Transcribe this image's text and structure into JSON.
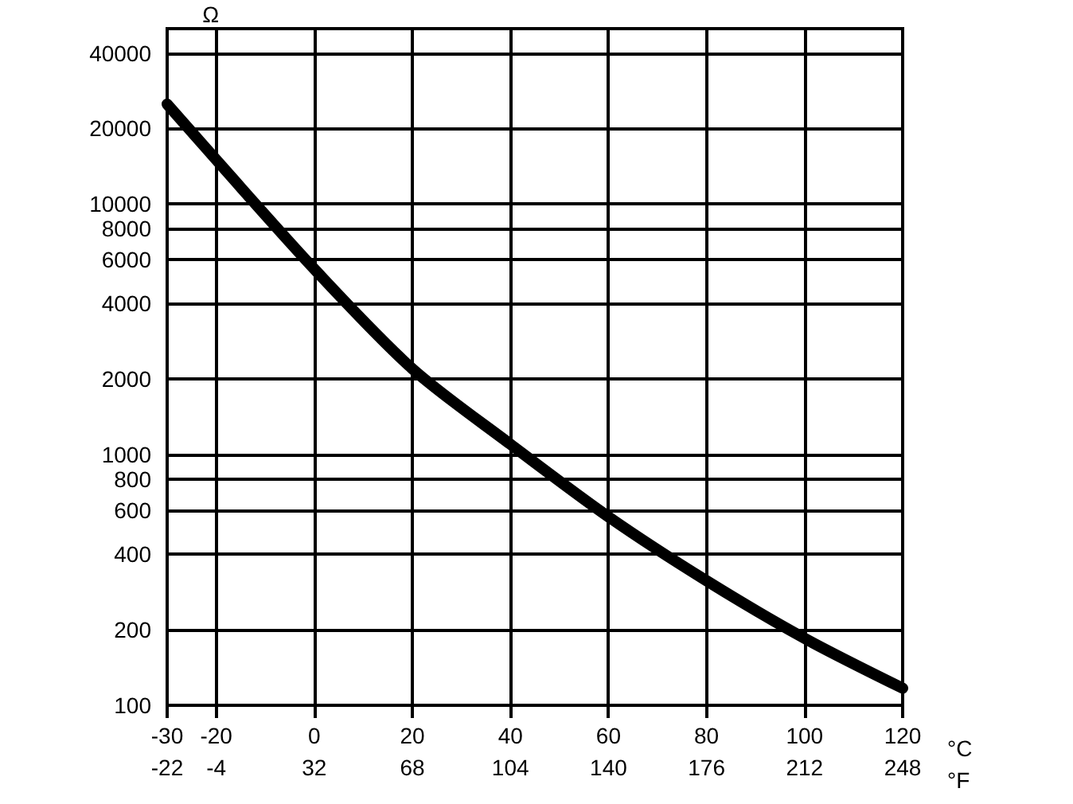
{
  "chart_data": {
    "type": "line",
    "xlabel": "°C",
    "x2label": "°F",
    "ylabel": "Ω",
    "x": [
      -30,
      -20,
      0,
      20,
      40,
      60,
      80,
      100,
      120
    ],
    "series": [
      {
        "color": "#000000",
        "values": [
          25000,
          15000,
          5500,
          2200,
          1100,
          565,
          314,
          185,
          117
        ]
      }
    ],
    "xlim": [
      -30,
      120
    ],
    "xticks": [
      -30,
      -20,
      0,
      20,
      40,
      60,
      80,
      100,
      120
    ],
    "x2lim": [
      -22,
      248
    ],
    "x2ticks": [
      -22,
      -4,
      32,
      68,
      104,
      140,
      176,
      212,
      248
    ],
    "ylim": [
      100,
      50000
    ],
    "yticks": [
      100,
      200,
      400,
      600,
      800,
      1000,
      2000,
      4000,
      6000,
      8000,
      10000,
      20000,
      40000
    ],
    "log": true,
    "grid": true,
    "marker": "none",
    "line_style": "solid"
  }
}
